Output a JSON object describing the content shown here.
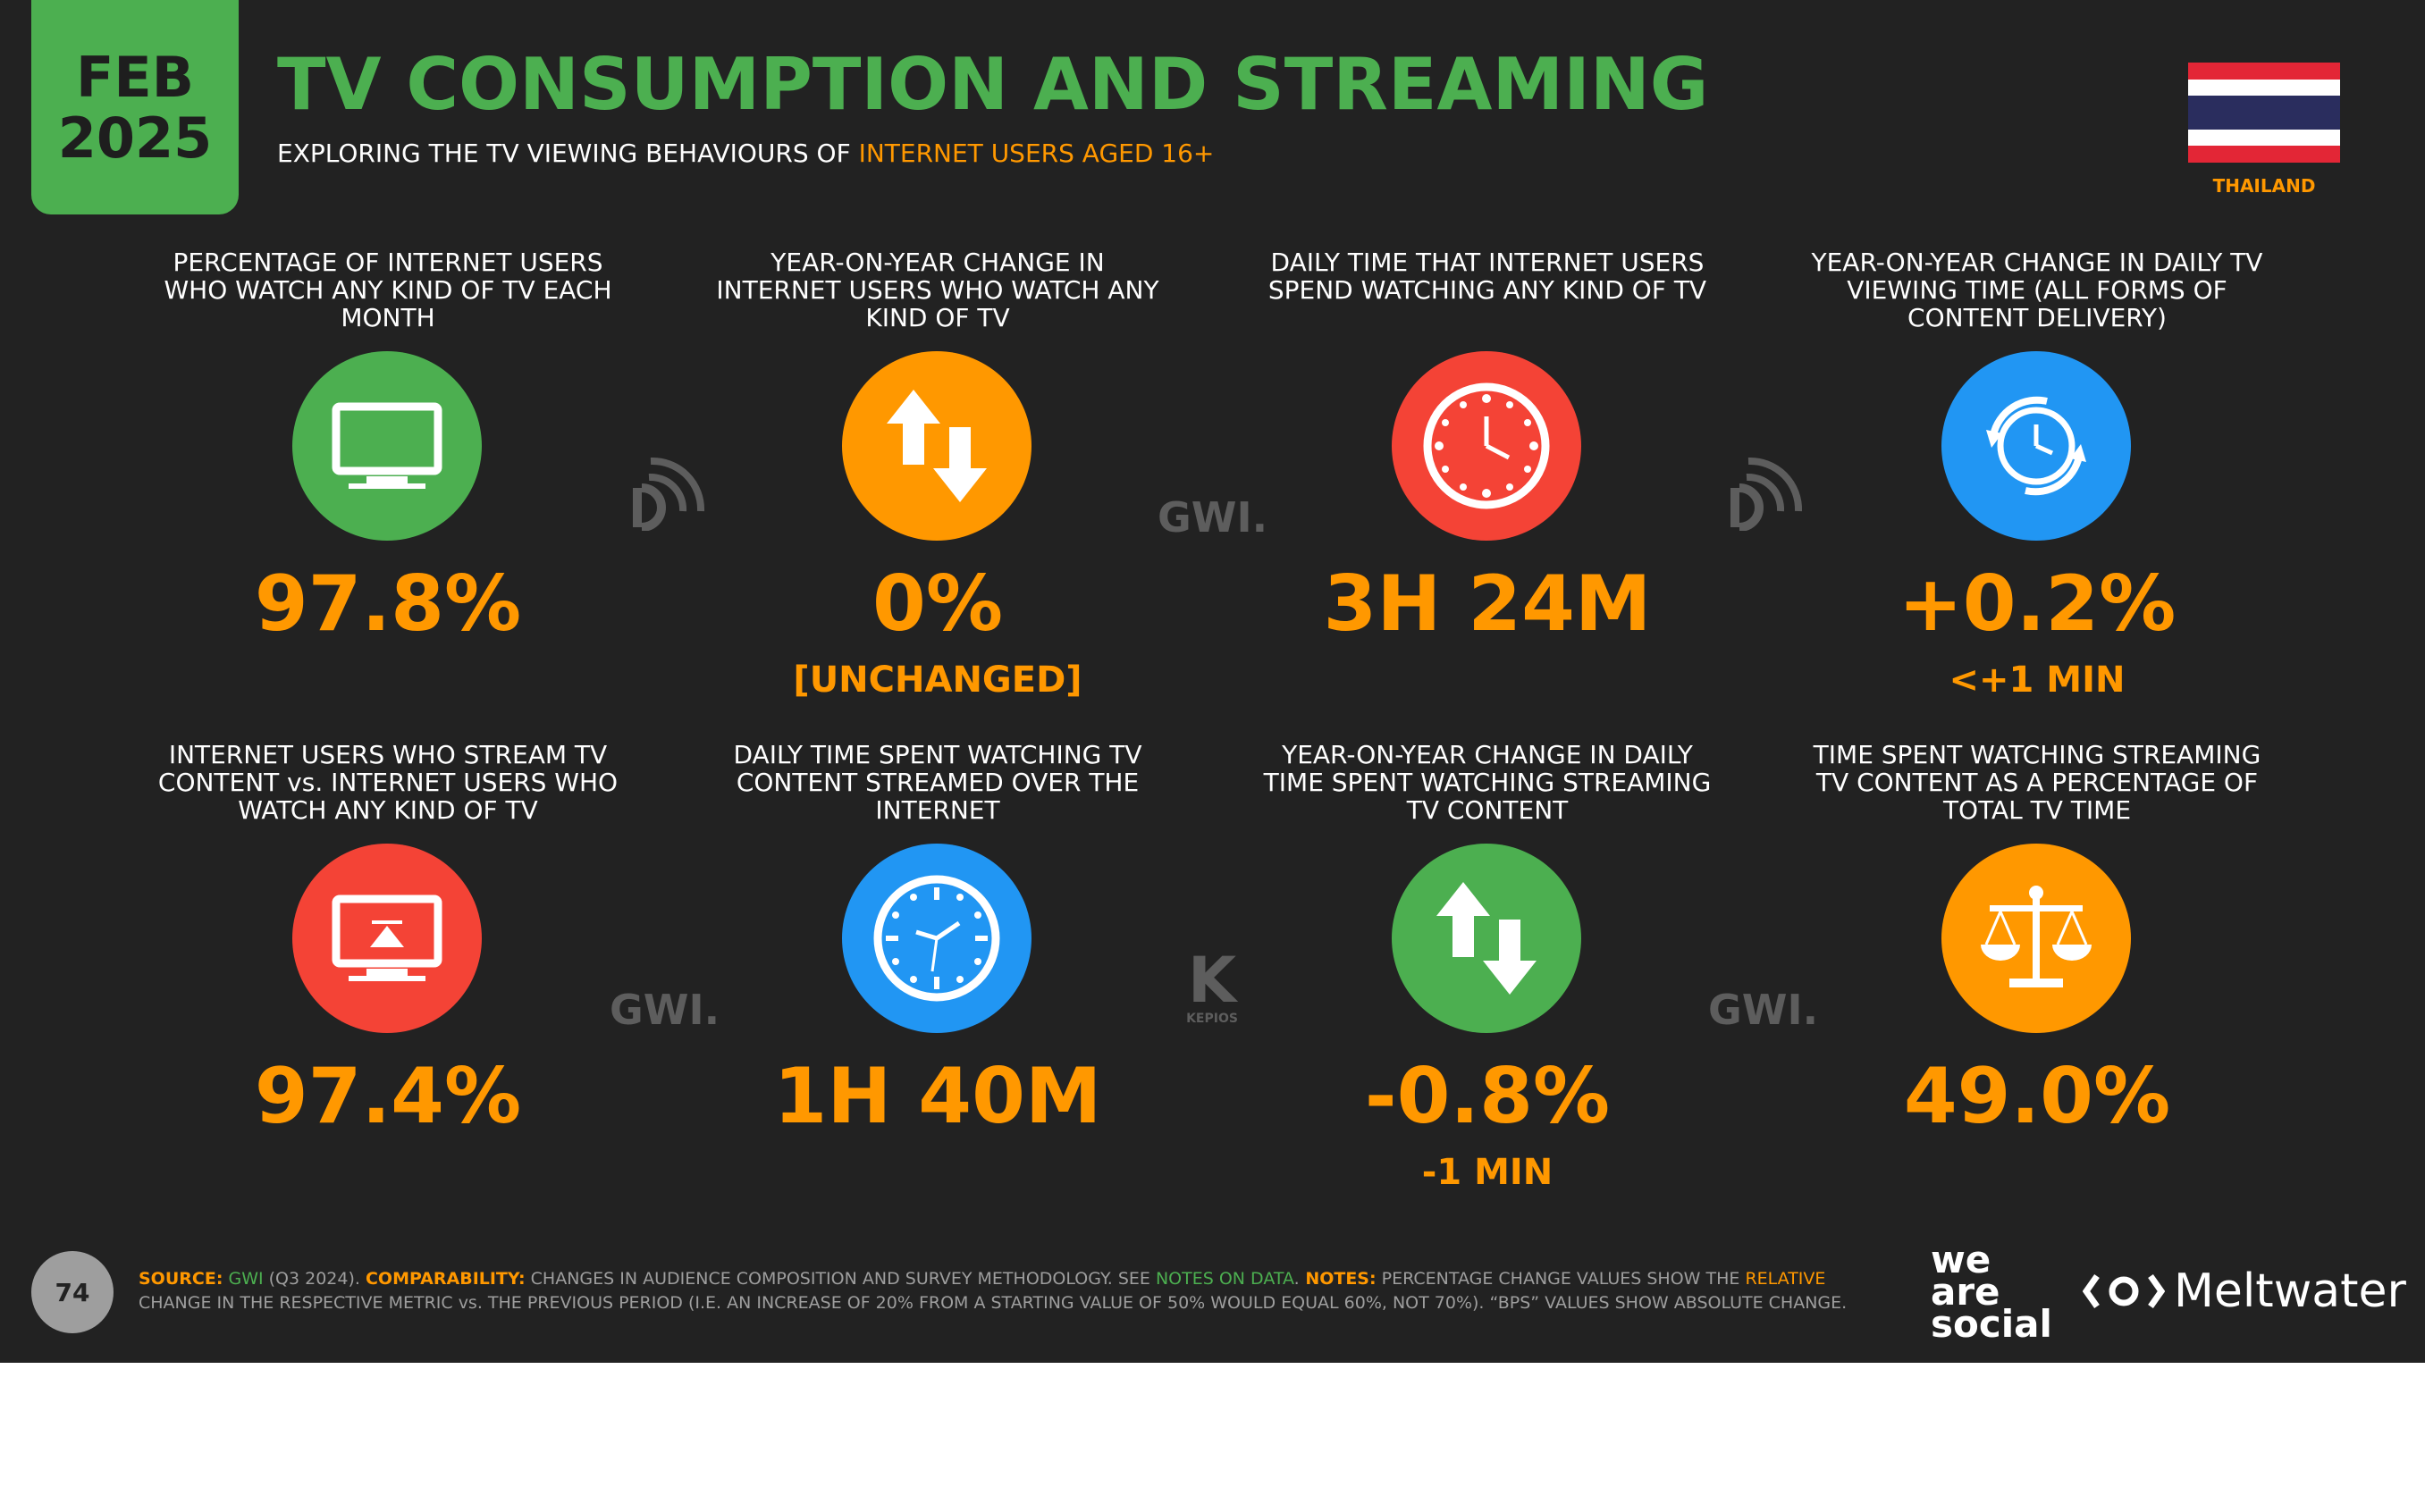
{
  "header": {
    "month": "FEB",
    "year": "2025",
    "title": "TV CONSUMPTION AND STREAMING",
    "subtitle_prefix": "EXPLORING THE TV VIEWING BEHAVIOURS OF ",
    "subtitle_highlight": "INTERNET USERS AGED 16+",
    "country": "THAILAND",
    "flag_colors": [
      "#e32636",
      "#ffffff",
      "#2a2d5e",
      "#ffffff",
      "#e32636"
    ]
  },
  "stats": [
    {
      "label": "PERCENTAGE OF INTERNET USERS WHO WATCH ANY KIND OF TV EACH MONTH",
      "value": "97.8%",
      "sub": "",
      "icon": "tv-icon",
      "color": "#4caf50"
    },
    {
      "label": "YEAR-ON-YEAR CHANGE IN INTERNET USERS WHO WATCH ANY KIND OF TV",
      "value": "0%",
      "sub": "[UNCHANGED]",
      "icon": "up-down-arrows-icon",
      "color": "#ff9800"
    },
    {
      "label": "DAILY TIME THAT INTERNET USERS SPEND WATCHING ANY KIND OF TV",
      "value": "3H 24M",
      "sub": "",
      "icon": "clock-icon",
      "color": "#f44336"
    },
    {
      "label": "YEAR-ON-YEAR CHANGE IN DAILY TV VIEWING TIME (ALL FORMS OF CONTENT DELIVERY)",
      "value": "+0.2%",
      "sub": "<+1 MIN",
      "icon": "clock-refresh-icon",
      "color": "#2196f3"
    },
    {
      "label": "INTERNET USERS WHO STREAM TV CONTENT vs. INTERNET USERS WHO WATCH ANY KIND OF TV",
      "value": "97.4%",
      "sub": "",
      "icon": "tv-airplay-icon",
      "color": "#f44336"
    },
    {
      "label": "DAILY TIME SPENT WATCHING TV CONTENT STREAMED OVER THE INTERNET",
      "value": "1H 40M",
      "sub": "",
      "icon": "clock-icon",
      "color": "#2196f3"
    },
    {
      "label": "YEAR-ON-YEAR CHANGE IN DAILY TIME SPENT WATCHING STREAMING TV CONTENT",
      "value": "-0.8%",
      "sub": "-1 MIN",
      "icon": "up-down-arrows-icon",
      "color": "#4caf50"
    },
    {
      "label": "TIME SPENT WATCHING STREAMING TV CONTENT AS A PERCENTAGE OF TOTAL TV TIME",
      "value": "49.0%",
      "sub": "",
      "icon": "scales-icon",
      "color": "#ff9800"
    }
  ],
  "watermarks": {
    "gwi": "GWI.",
    "kepios": "KEPIOS"
  },
  "footer": {
    "page": "74",
    "source_label": "SOURCE:",
    "source": "GWI",
    "source_period": " (Q3 2024). ",
    "comparability_label": "COMPARABILITY:",
    "comparability": " CHANGES IN AUDIENCE COMPOSITION AND SURVEY METHODOLOGY. SEE ",
    "notes_link": "NOTES ON DATA",
    "notes_label": " NOTES:",
    "notes_1": " PERCENTAGE CHANGE VALUES SHOW THE ",
    "notes_relative": "RELATIVE",
    "notes_2": " CHANGE IN THE RESPECTIVE METRIC vs. THE PREVIOUS PERIOD (I.E. AN INCREASE OF 20% FROM A STARTING VALUE OF 50% WOULD EQUAL 60%, NOT 70%). “BPS” VALUES SHOW ABSOLUTE CHANGE."
  },
  "brands": {
    "we": "we",
    "are": "are",
    "social": "social",
    "meltwater": "Meltwater"
  }
}
